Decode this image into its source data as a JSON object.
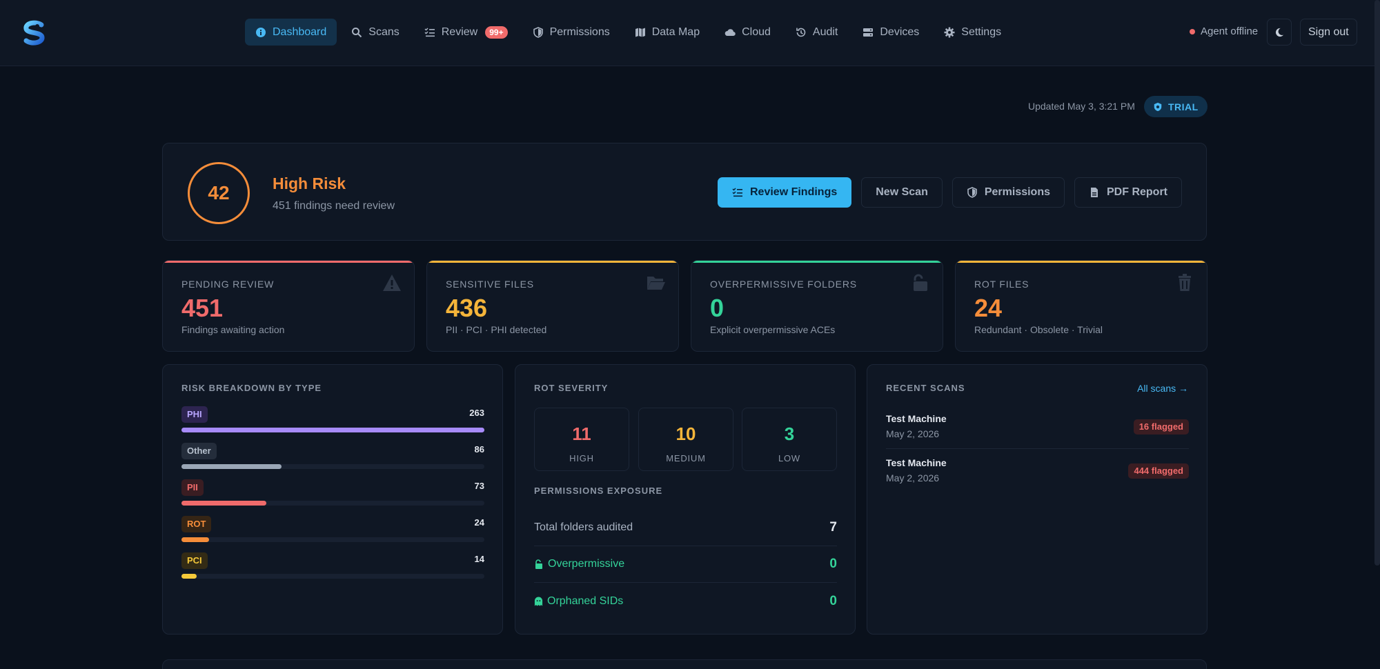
{
  "nav": {
    "items": [
      {
        "label": "Dashboard",
        "icon": "info-circle-icon",
        "active": true
      },
      {
        "label": "Scans",
        "icon": "search-icon"
      },
      {
        "label": "Review",
        "icon": "checklist-icon",
        "badge": "99+"
      },
      {
        "label": "Permissions",
        "icon": "shield-icon"
      },
      {
        "label": "Data Map",
        "icon": "map-icon"
      },
      {
        "label": "Cloud",
        "icon": "cloud-icon"
      },
      {
        "label": "Audit",
        "icon": "history-icon"
      },
      {
        "label": "Devices",
        "icon": "server-icon"
      },
      {
        "label": "Settings",
        "icon": "gear-icon"
      }
    ],
    "agent_status": "Agent offline",
    "sign_out": "Sign out"
  },
  "header": {
    "updated": "Updated May 3, 3:21 PM",
    "plan_badge": "TRIAL"
  },
  "hero": {
    "score": "42",
    "risk_level": "High Risk",
    "summary": "451 findings need review",
    "actions": {
      "review": "Review Findings",
      "new_scan": "New Scan",
      "permissions": "Permissions",
      "pdf": "PDF Report"
    }
  },
  "stats": [
    {
      "label": "PENDING REVIEW",
      "value": "451",
      "desc": "Findings awaiting action",
      "color": "#f06b6b",
      "icon": "warning-triangle-icon"
    },
    {
      "label": "SENSITIVE FILES",
      "value": "436",
      "desc": "PII · PCI · PHI detected",
      "color": "#f5b53a",
      "icon": "folder-open-icon"
    },
    {
      "label": "OVERPERMISSIVE FOLDERS",
      "value": "0",
      "desc": "Explicit overpermissive ACEs",
      "color": "#34d399",
      "icon": "unlock-icon"
    },
    {
      "label": "ROT FILES",
      "value": "24",
      "desc": "Redundant · Obsolete · Trivial",
      "color": "#f58d3a",
      "icon": "trash-icon"
    }
  ],
  "risk_breakdown": {
    "title": "RISK BREAKDOWN BY TYPE",
    "rows": [
      {
        "label": "PHI",
        "count": "263",
        "fraction": 1.0,
        "color": "#a78bfa",
        "chip_bg": "#2d2450",
        "chip_fg": "#b9a6ff"
      },
      {
        "label": "Other",
        "count": "86",
        "fraction": 0.33,
        "color": "#9aa6b6",
        "chip_bg": "#242d3b",
        "chip_fg": "#b6c0cd"
      },
      {
        "label": "PII",
        "count": "73",
        "fraction": 0.28,
        "color": "#f06b6b",
        "chip_bg": "#3a1d22",
        "chip_fg": "#f06b6b"
      },
      {
        "label": "ROT",
        "count": "24",
        "fraction": 0.09,
        "color": "#f58d3a",
        "chip_bg": "#352515",
        "chip_fg": "#f58d3a"
      },
      {
        "label": "PCI",
        "count": "14",
        "fraction": 0.05,
        "color": "#f5c93a",
        "chip_bg": "#332b15",
        "chip_fg": "#f5c93a"
      }
    ]
  },
  "rot_severity": {
    "title": "ROT SEVERITY",
    "items": [
      {
        "value": "11",
        "label": "HIGH",
        "color": "#f06b6b"
      },
      {
        "value": "10",
        "label": "MEDIUM",
        "color": "#f5b53a"
      },
      {
        "value": "3",
        "label": "LOW",
        "color": "#34d399"
      }
    ]
  },
  "permissions_exposure": {
    "title": "PERMISSIONS EXPOSURE",
    "rows": [
      {
        "label": "Total folders audited",
        "value": "7",
        "color": "#e5e9f0",
        "label_color": "#a9b3c2"
      },
      {
        "label": "Overpermissive",
        "value": "0",
        "color": "#34d399",
        "label_color": "#34d399",
        "icon": "unlock-icon"
      },
      {
        "label": "Orphaned SIDs",
        "value": "0",
        "color": "#34d399",
        "label_color": "#34d399",
        "icon": "ghost-icon"
      }
    ]
  },
  "recent_scans": {
    "title": "RECENT SCANS",
    "all_link": "All scans →",
    "rows": [
      {
        "name": "Test Machine",
        "date": "May 2, 2026",
        "flagged": "16 flagged"
      },
      {
        "name": "Test Machine",
        "date": "May 2, 2026",
        "flagged": "444 flagged"
      }
    ]
  }
}
